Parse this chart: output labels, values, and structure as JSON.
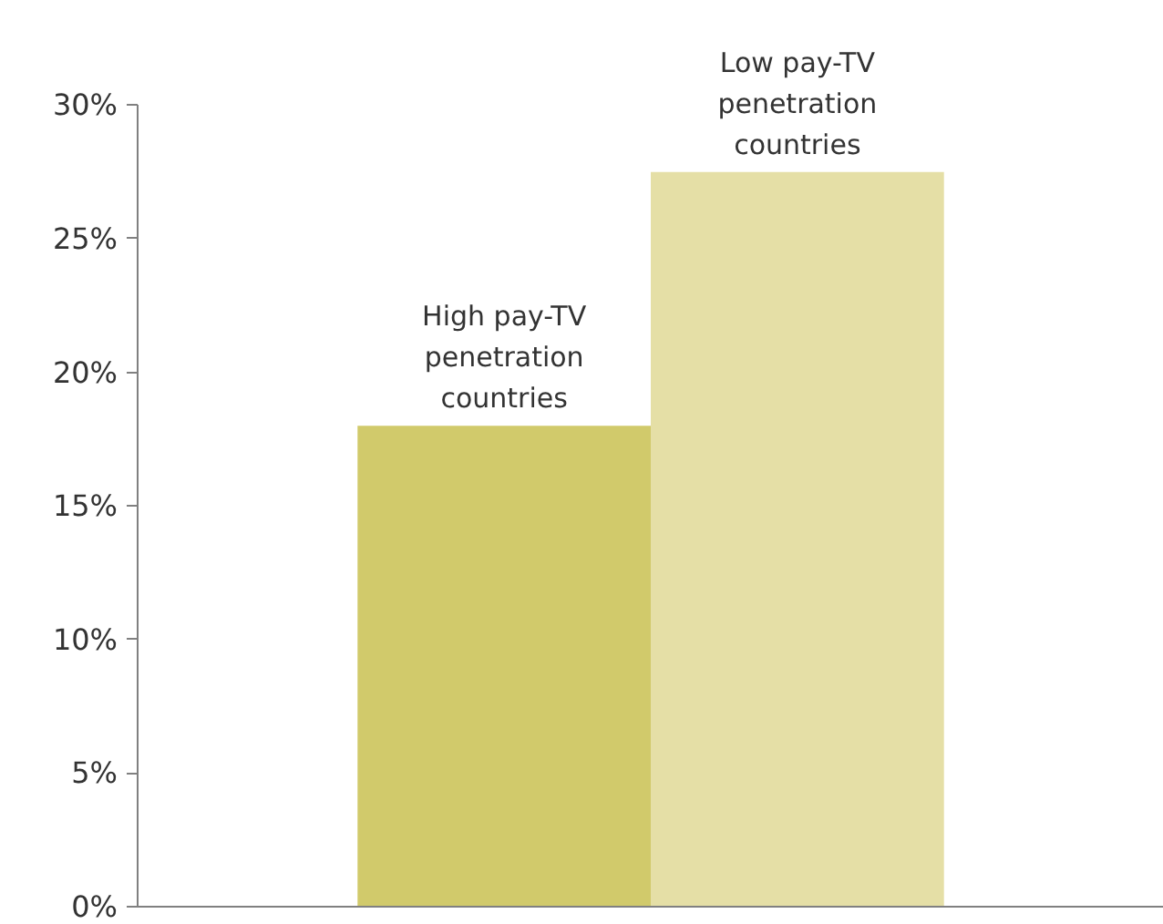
{
  "chart_data": {
    "type": "bar",
    "categories": [
      "High pay-TV penetration countries",
      "Low pay-TV penetration countries"
    ],
    "values": [
      18,
      27.5
    ],
    "colors": [
      "#d1ca6b",
      "#e5dfa6"
    ],
    "ylim": [
      0,
      30
    ],
    "yticks": [
      {
        "value": 0,
        "label": "0%"
      },
      {
        "value": 5,
        "label": "5%"
      },
      {
        "value": 10,
        "label": "10%"
      },
      {
        "value": 15,
        "label": "15%"
      },
      {
        "value": 20,
        "label": "20%"
      },
      {
        "value": 25,
        "label": "25%"
      },
      {
        "value": 30,
        "label": "30%"
      }
    ],
    "grid": false
  }
}
